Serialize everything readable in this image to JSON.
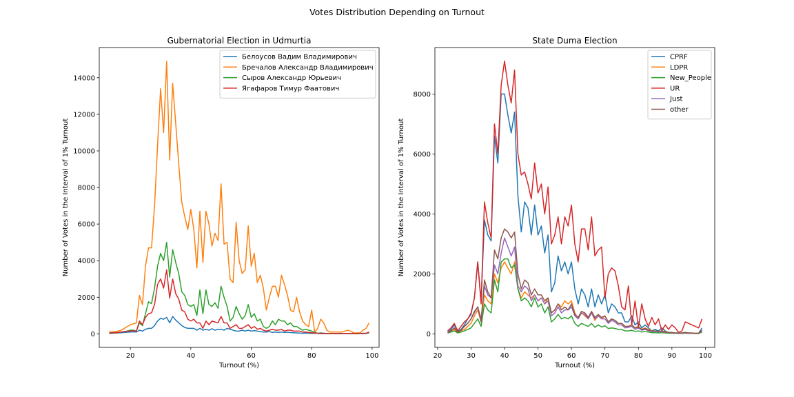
{
  "figure": {
    "title": "Votes Distribution Depending on Turnout"
  },
  "chart_data": [
    {
      "type": "line",
      "title": "Gubernatorial Election in Udmurtia",
      "xlabel": "Turnout (%)",
      "ylabel": "Number of Votes in the Interval of 1% Turnout",
      "xlim": [
        9.7,
        102.3
      ],
      "ylim": [
        -740,
        15650
      ],
      "xticks": [
        20,
        40,
        60,
        80,
        100
      ],
      "yticks": [
        0,
        2000,
        4000,
        6000,
        8000,
        10000,
        12000,
        14000
      ],
      "legend": "top-right",
      "x": [
        13,
        15,
        17,
        19,
        20,
        21,
        22,
        23,
        24,
        25,
        26,
        27,
        28,
        29,
        30,
        31,
        32,
        33,
        34,
        35,
        36,
        37,
        38,
        39,
        40,
        41,
        42,
        43,
        44,
        45,
        46,
        47,
        48,
        49,
        50,
        51,
        52,
        53,
        54,
        55,
        56,
        57,
        58,
        59,
        60,
        61,
        62,
        63,
        64,
        65,
        66,
        67,
        68,
        69,
        70,
        71,
        72,
        73,
        74,
        75,
        76,
        77,
        78,
        79,
        80,
        81,
        82,
        83,
        84,
        85,
        86,
        87,
        88,
        90,
        92,
        94,
        96,
        97,
        98,
        99
      ],
      "series": [
        {
          "name": "Белоусов Вадим Владимирович",
          "color": "#1f77b4",
          "values": [
            20,
            40,
            60,
            90,
            100,
            110,
            100,
            200,
            150,
            250,
            300,
            300,
            450,
            700,
            850,
            800,
            900,
            600,
            950,
            750,
            600,
            450,
            350,
            300,
            300,
            300,
            200,
            300,
            200,
            250,
            200,
            280,
            200,
            250,
            250,
            200,
            300,
            250,
            200,
            150,
            150,
            200,
            150,
            200,
            150,
            180,
            150,
            120,
            100,
            100,
            120,
            80,
            100,
            80,
            100,
            80,
            90,
            70,
            60,
            50,
            40,
            30,
            40,
            30,
            20,
            30,
            20,
            10,
            10,
            10,
            10,
            10,
            10,
            10,
            10,
            10,
            10,
            10,
            20,
            50
          ]
        },
        {
          "name": "Бречалов Александр Владимирович",
          "color": "#ff7f0e",
          "values": [
            100,
            120,
            200,
            400,
            500,
            550,
            600,
            2100,
            1600,
            3700,
            4700,
            4700,
            7000,
            10300,
            13400,
            11000,
            14900,
            9500,
            13700,
            11500,
            9300,
            7200,
            6400,
            5700,
            6800,
            5700,
            3600,
            6700,
            3900,
            6700,
            6000,
            4800,
            5500,
            5100,
            8200,
            4900,
            5000,
            3000,
            2800,
            6100,
            4000,
            3300,
            3500,
            5900,
            3700,
            4400,
            2800,
            3200,
            2500,
            1300,
            2000,
            2600,
            2600,
            2000,
            3200,
            2700,
            2100,
            1300,
            1200,
            2000,
            1200,
            700,
            500,
            400,
            1300,
            100,
            300,
            800,
            600,
            200,
            100,
            100,
            100,
            100,
            200,
            50,
            50,
            200,
            300,
            600
          ]
        },
        {
          "name": "Сыров Александр Юрьевич",
          "color": "#2ca02c",
          "values": [
            50,
            70,
            100,
            150,
            200,
            200,
            150,
            600,
            450,
            1100,
            1750,
            1650,
            2500,
            3700,
            4400,
            4000,
            5000,
            3100,
            4600,
            3900,
            3300,
            2300,
            2100,
            1600,
            1500,
            1600,
            1000,
            2400,
            1100,
            2400,
            1600,
            1500,
            1700,
            1400,
            2600,
            2000,
            1500,
            700,
            900,
            1500,
            1100,
            800,
            1000,
            1600,
            900,
            1100,
            700,
            800,
            400,
            300,
            400,
            700,
            500,
            800,
            700,
            700,
            500,
            600,
            400,
            400,
            300,
            200,
            250,
            200,
            150,
            80,
            30,
            50,
            30,
            20,
            20,
            20,
            20,
            20,
            20,
            20,
            20,
            30,
            30,
            50
          ]
        },
        {
          "name": "Ягафаров Тимур Фаатович",
          "color": "#d62728",
          "values": [
            40,
            60,
            100,
            150,
            150,
            170,
            150,
            700,
            500,
            900,
            1100,
            1150,
            1600,
            2700,
            3000,
            2500,
            3500,
            1950,
            3000,
            2200,
            1900,
            1300,
            1200,
            800,
            700,
            800,
            600,
            600,
            300,
            700,
            500,
            700,
            650,
            600,
            950,
            600,
            600,
            300,
            400,
            500,
            300,
            300,
            400,
            500,
            300,
            400,
            250,
            300,
            200,
            150,
            200,
            250,
            200,
            200,
            250,
            150,
            200,
            200,
            150,
            150,
            150,
            100,
            100,
            80,
            60,
            50,
            30,
            30,
            30,
            20,
            20,
            20,
            20,
            20,
            20,
            20,
            20,
            20,
            30,
            100
          ]
        }
      ]
    },
    {
      "type": "line",
      "title": "State Duma Election",
      "xlabel": "Turnout (%)",
      "ylabel": "Number of Votes in the Interval of 1% Turnout",
      "xlim": [
        19.2,
        102.8
      ],
      "ylim": [
        -450,
        9550
      ],
      "xticks": [
        20,
        30,
        40,
        50,
        60,
        70,
        80,
        90,
        100
      ],
      "yticks": [
        0,
        2000,
        4000,
        6000,
        8000
      ],
      "legend": "top-right",
      "x": [
        23,
        24,
        25,
        26,
        27,
        28,
        29,
        30,
        31,
        32,
        33,
        34,
        35,
        36,
        37,
        38,
        39,
        40,
        41,
        42,
        43,
        44,
        45,
        46,
        47,
        48,
        49,
        50,
        51,
        52,
        53,
        54,
        55,
        56,
        57,
        58,
        59,
        60,
        61,
        62,
        63,
        64,
        65,
        66,
        67,
        68,
        69,
        70,
        71,
        72,
        73,
        74,
        75,
        76,
        77,
        78,
        79,
        80,
        81,
        82,
        83,
        84,
        85,
        86,
        87,
        88,
        89,
        90,
        91,
        92,
        93,
        94,
        95,
        96,
        97,
        98,
        99
      ],
      "series": [
        {
          "name": "CPRF",
          "color": "#1f77b4",
          "values": [
            50,
            150,
            300,
            80,
            150,
            300,
            500,
            650,
            1200,
            2400,
            1100,
            3800,
            3300,
            3100,
            6600,
            5700,
            8000,
            8000,
            7300,
            6700,
            7400,
            4600,
            3400,
            4400,
            4200,
            3300,
            4300,
            3300,
            3600,
            2700,
            3300,
            1400,
            1700,
            2600,
            2100,
            2400,
            2000,
            2400,
            1500,
            1000,
            1500,
            1300,
            900,
            1500,
            900,
            1300,
            1000,
            1300,
            700,
            1000,
            900,
            700,
            700,
            400,
            400,
            600,
            300,
            400,
            200,
            300,
            200,
            100,
            150,
            100,
            200,
            100,
            50,
            50,
            30,
            30,
            30,
            50,
            30,
            30,
            20,
            20,
            200
          ]
        },
        {
          "name": "LDPR",
          "color": "#ff7f0e",
          "values": [
            40,
            80,
            150,
            50,
            100,
            150,
            250,
            350,
            600,
            800,
            400,
            1300,
            1100,
            1000,
            2000,
            1700,
            2200,
            2400,
            2200,
            2000,
            2400,
            1500,
            1200,
            1400,
            1300,
            1200,
            1300,
            1100,
            1200,
            1000,
            1200,
            700,
            800,
            1000,
            900,
            1100,
            1000,
            1100,
            700,
            500,
            700,
            600,
            500,
            700,
            450,
            600,
            500,
            600,
            400,
            500,
            450,
            350,
            350,
            250,
            250,
            300,
            200,
            250,
            150,
            200,
            150,
            100,
            100,
            80,
            100,
            80,
            50,
            40,
            30,
            30,
            30,
            40,
            30,
            30,
            20,
            20,
            100
          ]
        },
        {
          "name": "New_People",
          "color": "#2ca02c",
          "values": [
            30,
            60,
            100,
            30,
            60,
            100,
            150,
            200,
            350,
            500,
            250,
            1000,
            800,
            700,
            1800,
            1400,
            2400,
            2500,
            2500,
            2200,
            2300,
            1500,
            1100,
            1200,
            1100,
            900,
            1200,
            900,
            1000,
            700,
            900,
            400,
            500,
            650,
            500,
            550,
            500,
            600,
            350,
            250,
            350,
            300,
            250,
            350,
            220,
            300,
            230,
            270,
            180,
            200,
            180,
            150,
            150,
            100,
            100,
            120,
            80,
            100,
            60,
            80,
            60,
            40,
            40,
            30,
            40,
            30,
            20,
            20,
            15,
            15,
            15,
            20,
            15,
            15,
            10,
            10,
            60
          ]
        },
        {
          "name": "UR",
          "color": "#d62728",
          "values": [
            100,
            200,
            350,
            100,
            250,
            400,
            500,
            700,
            1200,
            2400,
            1000,
            4400,
            3700,
            3200,
            7000,
            6000,
            8300,
            9100,
            8300,
            7700,
            8800,
            6000,
            5300,
            5400,
            5000,
            4500,
            5700,
            4700,
            5000,
            4000,
            4900,
            3000,
            3300,
            3900,
            3000,
            3900,
            3600,
            4300,
            3000,
            2400,
            3500,
            3500,
            2800,
            3900,
            2600,
            2800,
            2900,
            1200,
            2000,
            2200,
            2100,
            1600,
            900,
            800,
            1600,
            300,
            1100,
            200,
            1000,
            500,
            250,
            550,
            300,
            500,
            100,
            300,
            150,
            300,
            200,
            50,
            100,
            400,
            350,
            300,
            250,
            200,
            500
          ]
        },
        {
          "name": "Just",
          "color": "#9467bd",
          "values": [
            40,
            100,
            200,
            60,
            120,
            250,
            350,
            500,
            700,
            900,
            500,
            1600,
            1300,
            1200,
            2300,
            2000,
            2700,
            3200,
            2900,
            2600,
            2900,
            1600,
            1400,
            1600,
            1500,
            1100,
            1300,
            1100,
            1200,
            1000,
            1100,
            600,
            700,
            900,
            700,
            800,
            800,
            900,
            600,
            500,
            700,
            650,
            500,
            700,
            500,
            600,
            500,
            500,
            350,
            450,
            400,
            300,
            300,
            200,
            220,
            250,
            150,
            200,
            120,
            150,
            100,
            80,
            80,
            60,
            80,
            50,
            40,
            30,
            20,
            20,
            20,
            30,
            20,
            20,
            15,
            15,
            100
          ]
        },
        {
          "name": "other",
          "color": "#8c564b",
          "values": [
            40,
            100,
            200,
            60,
            120,
            250,
            350,
            500,
            750,
            900,
            400,
            1800,
            1400,
            1200,
            2800,
            2500,
            3200,
            3500,
            3400,
            3200,
            3400,
            2000,
            1500,
            1800,
            1700,
            1300,
            1500,
            1300,
            1300,
            1100,
            1200,
            700,
            800,
            1000,
            800,
            900,
            800,
            1000,
            650,
            550,
            750,
            700,
            550,
            750,
            550,
            650,
            550,
            600,
            400,
            500,
            450,
            350,
            350,
            250,
            250,
            300,
            200,
            220,
            150,
            180,
            120,
            100,
            100,
            80,
            100,
            60,
            50,
            40,
            30,
            30,
            30,
            40,
            30,
            30,
            20,
            20,
            120
          ]
        }
      ]
    }
  ]
}
